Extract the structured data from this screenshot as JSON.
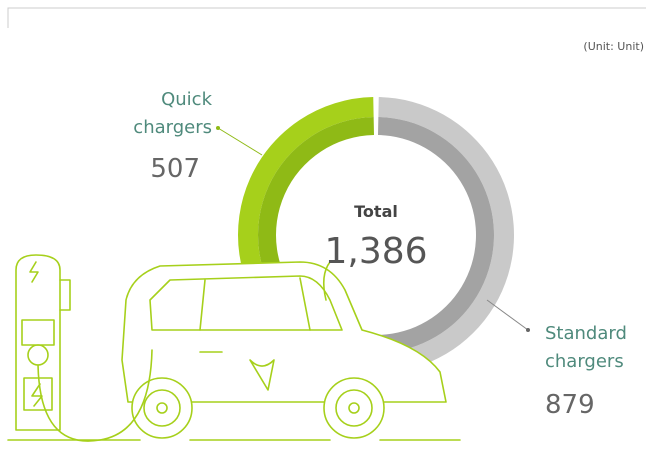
{
  "chart_data": {
    "type": "donut",
    "unit_note": "(Unit: Unit)",
    "total_title": "Total",
    "total": {
      "value": 1386,
      "label": "1,386"
    },
    "categories": [
      "Quick chargers",
      "Standard chargers"
    ],
    "values": [
      507,
      879
    ],
    "colors": [
      "#a6d01b",
      "#c9c9c9"
    ],
    "inner_colors": [
      "#8fba16",
      "#a3a3a3"
    ]
  }
}
